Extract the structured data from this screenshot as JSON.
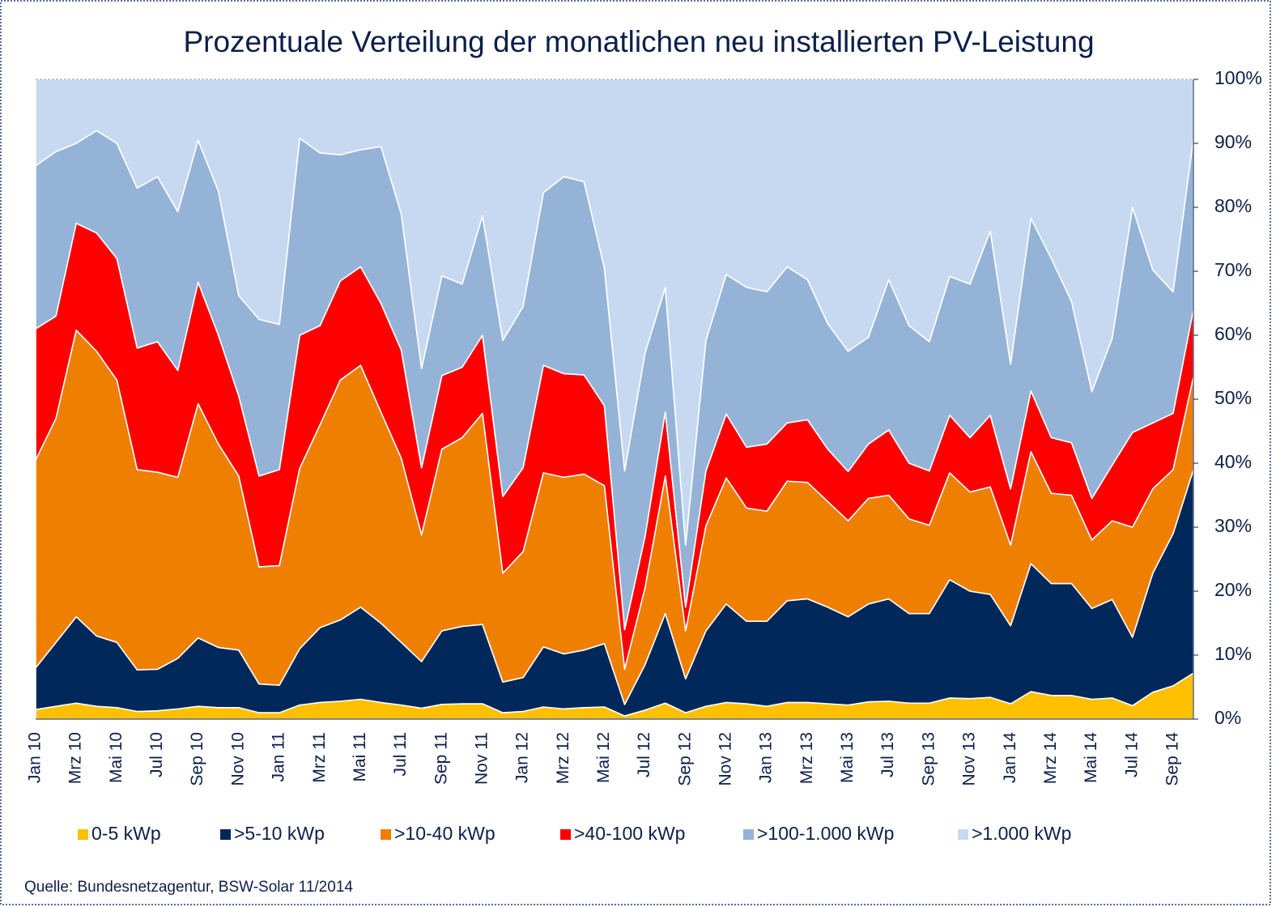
{
  "chart_data": {
    "type": "stacked_area",
    "title": "Prozentuale Verteilung der monatlichen neu installierten PV-Leistung",
    "source": "Quelle: Bundesnetzagentur, BSW-Solar 11/2014",
    "categories": [
      "Jan 10",
      null,
      "Mrz 10",
      null,
      "Mai 10",
      null,
      "Jul 10",
      null,
      "Sep 10",
      null,
      "Nov 10",
      null,
      "Jan 11",
      null,
      "Mrz 11",
      null,
      "Mai 11",
      null,
      "Jul 11",
      null,
      "Sep 11",
      null,
      "Nov 11",
      null,
      "Jan 12",
      null,
      "Mrz 12",
      null,
      "Mai 12",
      null,
      "Jul 12",
      null,
      "Sep 12",
      null,
      "Nov 12",
      null,
      "Jan 13",
      null,
      "Mrz 13",
      null,
      "Mai 13",
      null,
      "Jul 13",
      null,
      "Sep 13",
      null,
      "Nov 13",
      null,
      "Jan 14",
      null,
      "Mrz 14",
      null,
      "Mai 14",
      null,
      "Jul 14",
      null,
      "Sep 14",
      null
    ],
    "series": [
      {
        "name": "0-5 kWp",
        "color": "#FFC000",
        "values": [
          1.5,
          2,
          2.5,
          2,
          1.8,
          1.2,
          1.3,
          1.6,
          2,
          1.8,
          1.8,
          1,
          1,
          2.2,
          2.6,
          2.8,
          3.1,
          2.6,
          2.2,
          1.7,
          2.3,
          2.4,
          2.4,
          1,
          1.2,
          1.9,
          1.6,
          1.8,
          1.9,
          0.5,
          1.4,
          2.5,
          1,
          2,
          2.6,
          2.4,
          2,
          2.6,
          2.6,
          2.4,
          2.2,
          2.7,
          2.8,
          2.5,
          2.5,
          3.3,
          3.2,
          3.4,
          2.4,
          4.3,
          3.7,
          3.7,
          3.1,
          3.3,
          2.1,
          4.2,
          5.2,
          7.2
        ]
      },
      {
        "name": ">5-10 kWp",
        "color": "#00285A",
        "values": [
          6.5,
          10,
          13.5,
          11,
          10.2,
          6.5,
          6.5,
          7.9,
          10.7,
          9.4,
          9,
          4.5,
          4.3,
          8.8,
          11.7,
          12.7,
          14.4,
          12.4,
          9.8,
          7.3,
          11.5,
          12.1,
          12.4,
          4.8,
          5.3,
          9.4,
          8.6,
          9,
          9.9,
          1.8,
          7.1,
          14,
          5.3,
          11.8,
          15.4,
          12.9,
          13.3,
          15.9,
          16.2,
          15.1,
          13.8,
          15.3,
          16,
          14,
          14,
          18.5,
          16.8,
          16.1,
          12.2,
          20,
          17.5,
          17.5,
          14.2,
          15.4,
          10.7,
          18.6,
          23.8,
          31.8
        ]
      },
      {
        "name": ">10-40 kWp",
        "color": "#EE7F00",
        "values": [
          32.5,
          35,
          44.8,
          44.5,
          41,
          31.3,
          30.8,
          28.3,
          36.6,
          31.8,
          27.2,
          18.3,
          18.7,
          28.2,
          31.7,
          37.5,
          37.8,
          33,
          28.8,
          19.8,
          28.4,
          29.5,
          33,
          17,
          19.7,
          27.2,
          27.6,
          27.5,
          24.7,
          5.5,
          12,
          21.5,
          7.5,
          16.4,
          19.7,
          17.7,
          17.2,
          18.7,
          18.2,
          16.5,
          15,
          16.5,
          16.2,
          14.8,
          13.8,
          16.7,
          15.5,
          16.8,
          12.6,
          17.5,
          14.1,
          13.8,
          10.7,
          12.3,
          17.2,
          13.2,
          10,
          14.5
        ]
      },
      {
        "name": ">40-100 kWp",
        "color": "#FF0000",
        "values": [
          20.5,
          16,
          16.7,
          18.5,
          19,
          19,
          20.4,
          16.7,
          19,
          17,
          12.5,
          14.2,
          15,
          20.8,
          15.5,
          15.5,
          15.4,
          17,
          16.9,
          10.5,
          11.5,
          11,
          12.2,
          12,
          13.1,
          16.8,
          16.2,
          15.5,
          12.5,
          6.2,
          8,
          10,
          3.7,
          8.6,
          10,
          9.5,
          10.5,
          9.1,
          9.8,
          8.2,
          7.7,
          8.5,
          10.2,
          8.7,
          8.5,
          9,
          8.5,
          11.2,
          8.8,
          9.5,
          8.7,
          8.2,
          6.5,
          8.7,
          14.8,
          10.3,
          8.8,
          10.5
        ]
      },
      {
        "name": ">100-1.000 kWp",
        "color": "#95B3D7",
        "values": [
          25.5,
          25.7,
          12.5,
          16,
          18,
          25,
          25.8,
          24.8,
          22.2,
          22.5,
          15.7,
          24.5,
          22.7,
          30.8,
          27,
          19.7,
          18.3,
          24.5,
          21.3,
          15.5,
          15.6,
          13,
          18.7,
          24.4,
          25.2,
          27,
          30.8,
          30.2,
          21.5,
          24.8,
          28.7,
          19.5,
          9.7,
          20.4,
          21.8,
          25,
          23.8,
          24.4,
          21.9,
          19.6,
          18.8,
          16.7,
          23.5,
          21.5,
          20.2,
          21.7,
          24,
          28.8,
          19.5,
          27,
          28,
          22.1,
          16.7,
          19.8,
          35.2,
          23.9,
          19,
          26.8
        ]
      },
      {
        "name": ">1.000 kWp",
        "color": "#C6D9F1",
        "values": [
          13.5,
          11.3,
          10,
          8,
          10,
          17,
          15.2,
          20.7,
          9.5,
          17.5,
          33.8,
          37.5,
          38.3,
          9.2,
          11.5,
          11.8,
          11,
          10.5,
          21,
          45.2,
          30.7,
          32,
          21.3,
          40.8,
          35.5,
          17.7,
          15.2,
          16,
          29.5,
          61.2,
          42.8,
          32.5,
          72.8,
          40.8,
          30.5,
          32.5,
          33.2,
          29.3,
          31.3,
          38.2,
          42.5,
          40.3,
          31.3,
          38.5,
          41,
          30.8,
          32,
          23.7,
          44.5,
          21.7,
          28,
          34.7,
          48.8,
          40.5,
          20,
          29.8,
          33.2,
          9.2
        ]
      }
    ],
    "ylim": [
      0,
      100
    ],
    "yticks": [
      {
        "value": 0,
        "label": "0%"
      },
      {
        "value": 10,
        "label": "10%"
      },
      {
        "value": 20,
        "label": "20%"
      },
      {
        "value": 30,
        "label": "30%"
      },
      {
        "value": 40,
        "label": "40%"
      },
      {
        "value": 50,
        "label": "50%"
      },
      {
        "value": 60,
        "label": "60%"
      },
      {
        "value": 70,
        "label": "70%"
      },
      {
        "value": 80,
        "label": "80%"
      },
      {
        "value": 90,
        "label": "90%"
      },
      {
        "value": 100,
        "label": "100%"
      }
    ],
    "y_axis_side": "right",
    "legend": "bottom",
    "grid": false
  }
}
